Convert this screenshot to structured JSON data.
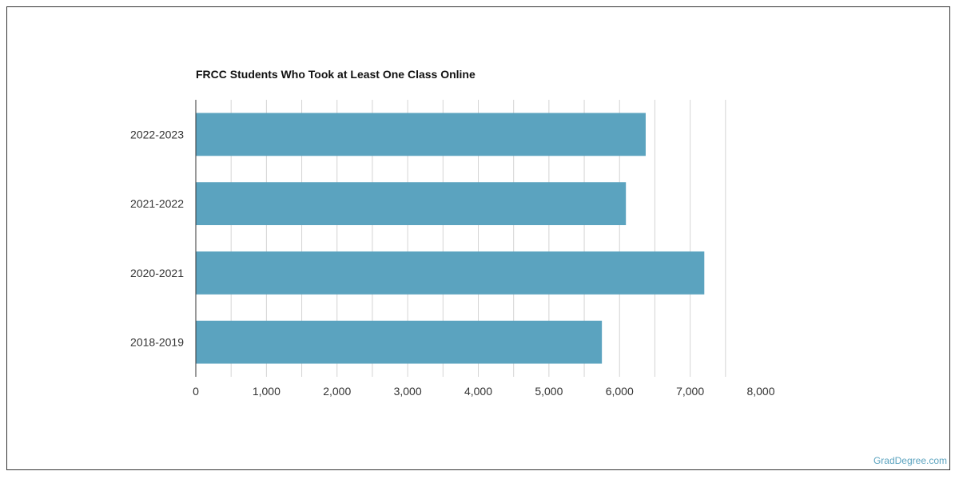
{
  "chart_data": {
    "type": "bar",
    "orientation": "horizontal",
    "title": "FRCC Students Who Took at Least One Class Online",
    "categories": [
      "2022-2023",
      "2021-2022",
      "2020-2021",
      "2018-2019"
    ],
    "values": [
      6370,
      6090,
      7200,
      5750
    ],
    "xlim": [
      0,
      8000
    ],
    "xticks": [
      0,
      1000,
      2000,
      3000,
      4000,
      5000,
      6000,
      7000,
      8000
    ],
    "xtick_labels": [
      "0",
      "1,000",
      "2,000",
      "3,000",
      "4,000",
      "5,000",
      "6,000",
      "7,000",
      "8,000"
    ],
    "grid": true,
    "bar_color": "#5ba3bf",
    "xlabel": "",
    "ylabel": ""
  },
  "footer": {
    "credit": "GradDegree.com"
  },
  "colors": {
    "bar": "#5ba3bf",
    "grid": "#d4d4d4",
    "axis": "#333333",
    "credit": "#5ba3bf"
  }
}
